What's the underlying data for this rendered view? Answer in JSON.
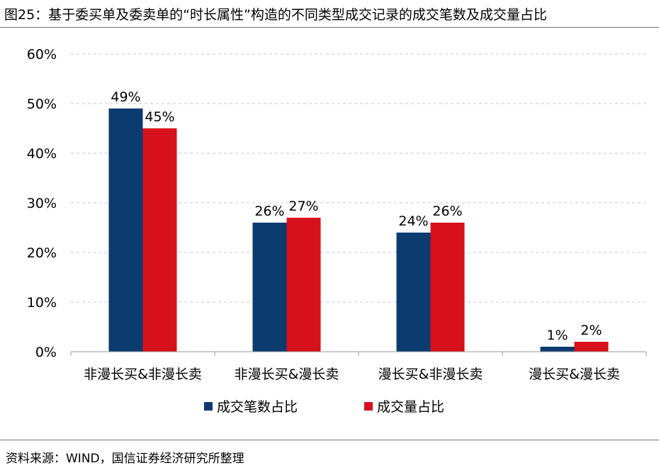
{
  "header": {
    "title": "图25：基于委买单及委卖单的“时长属性”构造的不同类型成交记录的成交笔数及成交量占比"
  },
  "footer": {
    "source": "资料来源：WIND，国信证券经济研究所整理"
  },
  "chart_data": {
    "type": "bar",
    "categories": [
      "非漫长买&非漫长卖",
      "非漫长买&漫长卖",
      "漫长买&非漫长卖",
      "漫长买&漫长卖"
    ],
    "series": [
      {
        "name": "成交笔数占比",
        "values": [
          49,
          26,
          24,
          1
        ],
        "labels": [
          "49%",
          "26%",
          "24%",
          "1%"
        ],
        "color": "#0b3b6f"
      },
      {
        "name": "成交量占比",
        "values": [
          45,
          27,
          26,
          2
        ],
        "labels": [
          "45%",
          "27%",
          "26%",
          "2%"
        ],
        "color": "#d7101c"
      }
    ],
    "ylim": [
      0,
      60
    ],
    "yticks": [
      "0%",
      "10%",
      "20%",
      "30%",
      "40%",
      "50%",
      "60%"
    ],
    "grid": true,
    "legend": "bottom"
  }
}
